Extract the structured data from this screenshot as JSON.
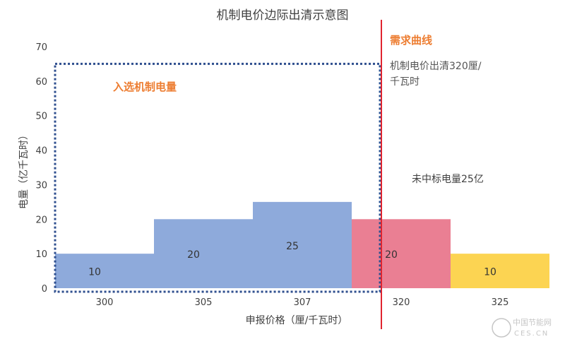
{
  "chart_data": {
    "type": "bar",
    "title": "机制电价边际出清示意图",
    "xlabel": "申报价格（厘/千瓦时）",
    "ylabel": "电量（亿千瓦时）",
    "categories": [
      "300",
      "305",
      "307",
      "320",
      "325"
    ],
    "values": [
      10,
      20,
      25,
      20,
      10
    ],
    "bar_colors": [
      "#8eaadb",
      "#8eaadb",
      "#8eaadb",
      "#ea7f93",
      "#fcd452"
    ],
    "ylim": [
      0,
      70
    ],
    "yticks": [
      0,
      10,
      20,
      30,
      40,
      50,
      60,
      70
    ],
    "grid": false,
    "demand_curve": {
      "label": "需求曲线",
      "x": "320",
      "color": "#e0242f"
    },
    "selected_box": {
      "label": "入选机制电量",
      "categories": [
        "300",
        "305",
        "307"
      ],
      "color": "#2f4f8f"
    },
    "annotations": {
      "clearing_line1": "机制电价出清320厘/",
      "clearing_line2": "千瓦时",
      "unselected": "未中标电量25亿"
    },
    "accent_color": "#ed7d31"
  },
  "watermark": {
    "text": "中国节能网",
    "sub": "CES.CN"
  }
}
